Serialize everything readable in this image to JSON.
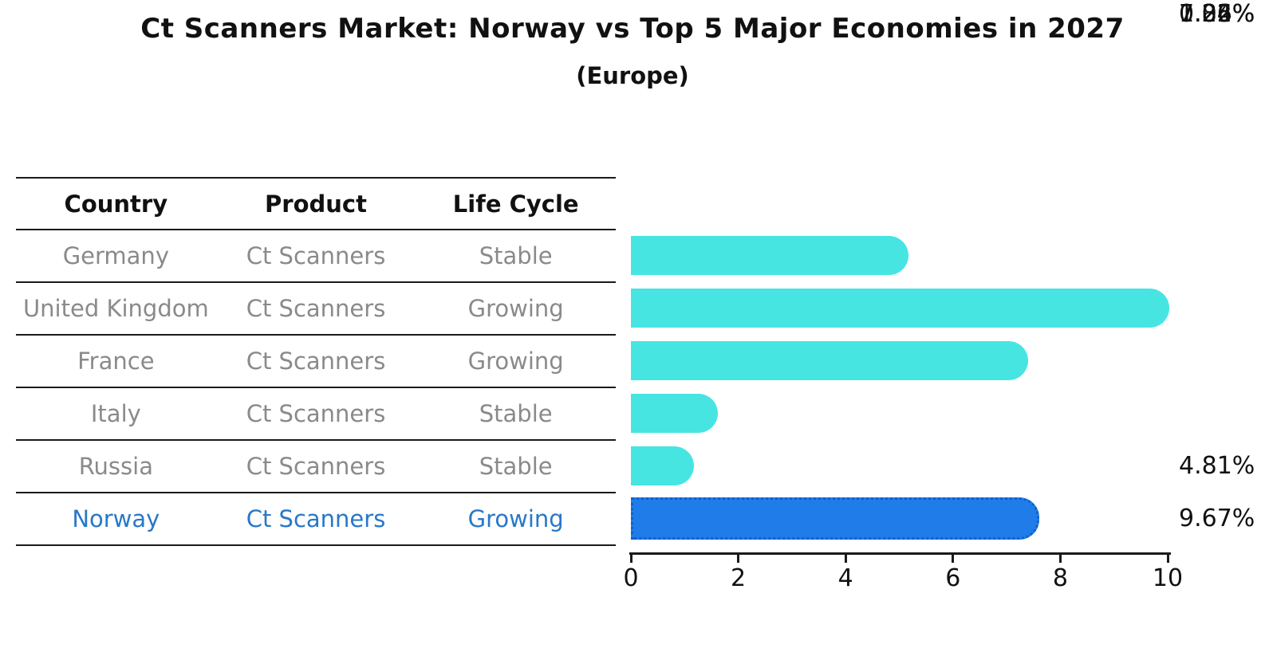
{
  "title": "Ct Scanners Market: Norway vs Top 5 Major Economies in 2027",
  "subtitle": "(Europe)",
  "table": {
    "headers": [
      "Country",
      "Product",
      "Life Cycle"
    ],
    "rows": [
      {
        "country": "Germany",
        "product": "Ct Scanners",
        "life_cycle": "Stable",
        "highlight": false
      },
      {
        "country": "United Kingdom",
        "product": "Ct Scanners",
        "life_cycle": "Growing",
        "highlight": false
      },
      {
        "country": "France",
        "product": "Ct Scanners",
        "life_cycle": "Growing",
        "highlight": false
      },
      {
        "country": "Italy",
        "product": "Ct Scanners",
        "life_cycle": "Stable",
        "highlight": false
      },
      {
        "country": "Russia",
        "product": "Ct Scanners",
        "life_cycle": "Stable",
        "highlight": false
      },
      {
        "country": "Norway",
        "product": "Ct Scanners",
        "life_cycle": "Growing",
        "highlight": true
      }
    ]
  },
  "chart_data": {
    "type": "bar",
    "orientation": "horizontal",
    "title": "Ct Scanners Market: Norway vs Top 5 Major Economies in 2027",
    "subtitle": "(Europe)",
    "categories": [
      "Germany",
      "United Kingdom",
      "France",
      "Italy",
      "Russia",
      "Norway"
    ],
    "values": [
      4.81,
      9.67,
      7.04,
      1.26,
      0.82,
      7.25
    ],
    "value_labels": [
      "4.81%",
      "9.67%",
      "7.04%",
      "1.26%",
      "0.82%",
      "7.25%"
    ],
    "unit": "%",
    "xlim": [
      0,
      10
    ],
    "xticks": [
      0,
      2,
      4,
      6,
      8,
      10
    ],
    "grid": false,
    "legend": false,
    "highlight_category": "Norway",
    "bar_color": "#46e5e2",
    "highlight_bar_color": "#1f7ce8",
    "highlight_text_color": "#2878c8",
    "row_text_color": "#8a8a8a"
  }
}
